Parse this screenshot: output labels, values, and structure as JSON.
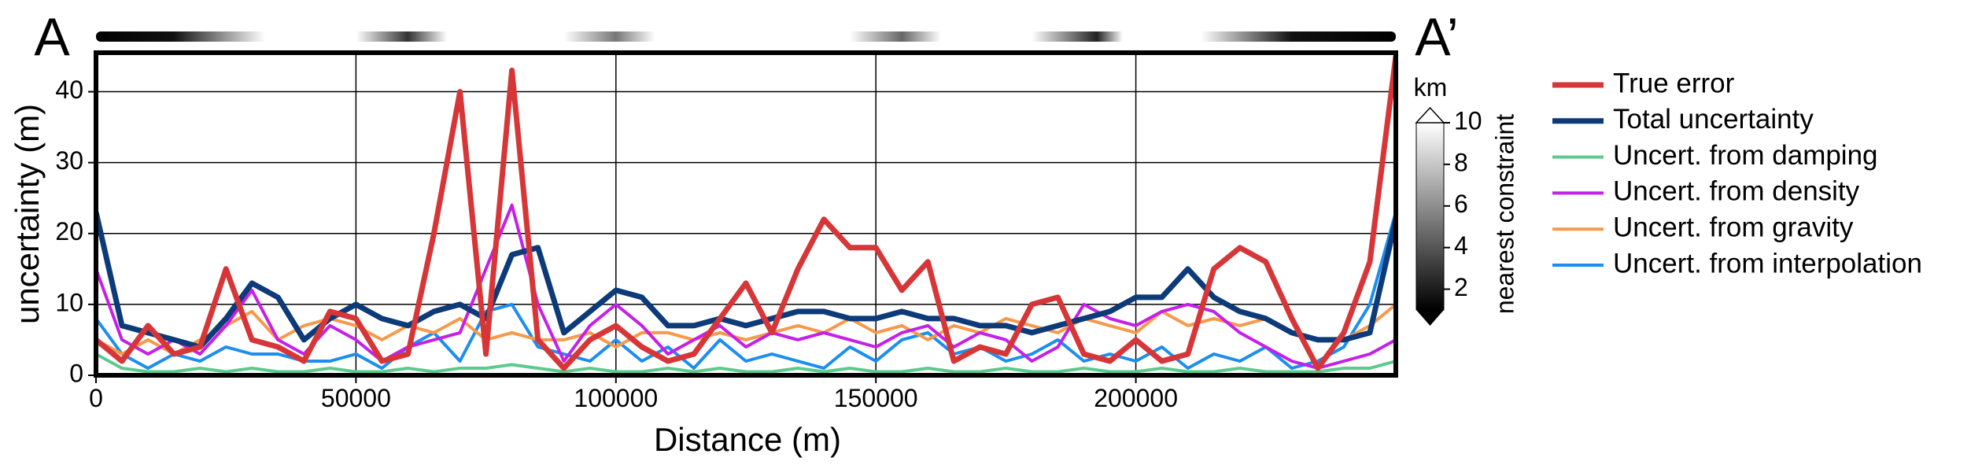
{
  "chart_data": {
    "type": "line",
    "start_label": "A",
    "end_label": "A’",
    "x_label": "Distance (m)",
    "y_label": "uncertainty (m)",
    "xlim": [
      0,
      250000
    ],
    "ylim": [
      0,
      45.5
    ],
    "xticks": [
      0,
      50000,
      100000,
      150000,
      200000
    ],
    "yticks": [
      0,
      10,
      20,
      30,
      40
    ],
    "grid": true,
    "legend": "right",
    "x": [
      0,
      5000,
      10000,
      15000,
      20000,
      25000,
      30000,
      35000,
      40000,
      45000,
      50000,
      55000,
      60000,
      65000,
      70000,
      75000,
      80000,
      85000,
      90000,
      95000,
      100000,
      105000,
      110000,
      115000,
      120000,
      125000,
      130000,
      135000,
      140000,
      145000,
      150000,
      155000,
      160000,
      165000,
      170000,
      175000,
      180000,
      185000,
      190000,
      195000,
      200000,
      205000,
      210000,
      215000,
      220000,
      225000,
      230000,
      235000,
      240000,
      245000,
      250000
    ],
    "series": [
      {
        "name": "True error",
        "color": "#d63638",
        "width": 7,
        "values": [
          5,
          2,
          7,
          3,
          4,
          15,
          5,
          4,
          2,
          9,
          8,
          2,
          3,
          20,
          40,
          3,
          43,
          5,
          1,
          5,
          7,
          4,
          2,
          3,
          8,
          13,
          6,
          15,
          22,
          18,
          18,
          12,
          16,
          2,
          4,
          3,
          10,
          11,
          3,
          2,
          5,
          2,
          3,
          15,
          18,
          16,
          8,
          1,
          6,
          16,
          45
        ]
      },
      {
        "name": "Total uncertainty",
        "color": "#0d3a78",
        "width": 7,
        "values": [
          23,
          7,
          6,
          5,
          4,
          8,
          13,
          11,
          5,
          8,
          10,
          8,
          7,
          9,
          10,
          8,
          17,
          18,
          6,
          9,
          12,
          11,
          7,
          7,
          8,
          7,
          8,
          9,
          9,
          8,
          8,
          9,
          8,
          8,
          7,
          7,
          6,
          7,
          8,
          9,
          11,
          11,
          15,
          11,
          9,
          8,
          6,
          5,
          5,
          6,
          22
        ]
      },
      {
        "name": "Uncert. from damping",
        "color": "#5cc98d",
        "width": 4,
        "values": [
          3,
          1,
          0.5,
          0.5,
          1,
          0.5,
          1,
          0.5,
          0.5,
          1,
          0.5,
          0.5,
          1,
          0.5,
          1,
          1,
          1.5,
          1,
          0.5,
          1,
          0.5,
          0.5,
          1,
          0.5,
          1,
          0.5,
          0.5,
          1,
          0.5,
          1,
          0.5,
          0.5,
          1,
          0.5,
          0.5,
          1,
          0.5,
          0.5,
          1,
          0.5,
          0.5,
          1,
          0.5,
          0.5,
          1,
          0.5,
          0.5,
          0.5,
          1,
          1,
          2
        ]
      },
      {
        "name": "Uncert. from density",
        "color": "#c520e8",
        "width": 4,
        "values": [
          15,
          5,
          3,
          5,
          3,
          7,
          12,
          5,
          3,
          7,
          5,
          2,
          4,
          5,
          6,
          15,
          24,
          10,
          2,
          7,
          10,
          7,
          3,
          5,
          7,
          4,
          6,
          5,
          6,
          5,
          4,
          6,
          7,
          4,
          6,
          5,
          2,
          4,
          10,
          8,
          7,
          9,
          10,
          9,
          6,
          4,
          2,
          1,
          2,
          3,
          5
        ]
      },
      {
        "name": "Uncert. from gravity",
        "color": "#f7994a",
        "width": 4,
        "values": [
          5,
          3,
          5,
          3,
          5,
          7,
          9,
          5,
          7,
          8,
          7,
          5,
          7,
          6,
          8,
          5,
          6,
          5,
          5,
          6,
          4,
          6,
          6,
          5,
          6,
          5,
          6,
          7,
          6,
          8,
          6,
          7,
          5,
          7,
          6,
          8,
          7,
          6,
          8,
          7,
          6,
          9,
          7,
          8,
          7,
          8,
          6,
          5,
          5,
          7,
          10
        ]
      },
      {
        "name": "Uncert. from interpolation",
        "color": "#1c8eef",
        "width": 4,
        "values": [
          8,
          3,
          1,
          3,
          2,
          4,
          3,
          3,
          2,
          2,
          3,
          1,
          4,
          6,
          2,
          9,
          10,
          4,
          3,
          2,
          5,
          2,
          4,
          1,
          5,
          2,
          3,
          2,
          1,
          4,
          2,
          5,
          6,
          3,
          4,
          2,
          3,
          5,
          2,
          3,
          2,
          4,
          1,
          3,
          2,
          4,
          1,
          2,
          4,
          10,
          23
        ]
      }
    ],
    "colorbar": {
      "label": "nearest constraint",
      "unit": "km",
      "lim": [
        1,
        10
      ],
      "ticks": [
        2,
        4,
        6,
        8,
        10
      ]
    }
  }
}
